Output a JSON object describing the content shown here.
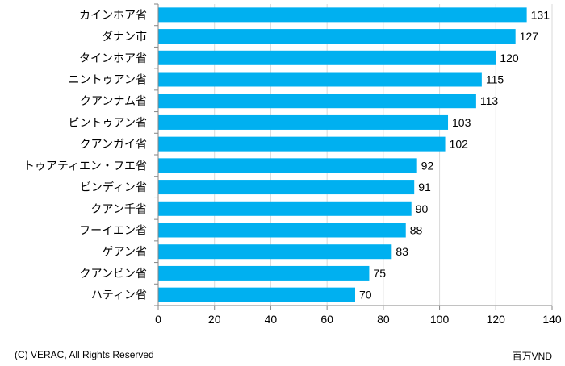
{
  "chart_data": {
    "type": "bar",
    "orientation": "horizontal",
    "categories": [
      "カインホア省",
      "ダナン市",
      "タインホア省",
      "ニントゥアン省",
      "クアンナム省",
      "ビントゥアン省",
      "クアンガイ省",
      "トゥアティエン・フエ省",
      "ビンディン省",
      "クアン千省",
      "フーイエン省",
      "ゲアン省",
      "クアンビン省",
      "ハティン省"
    ],
    "values": [
      131,
      127,
      120,
      115,
      113,
      103,
      102,
      92,
      91,
      90,
      88,
      83,
      75,
      70
    ],
    "xlim": [
      0,
      140
    ],
    "x_ticks": [
      0,
      20,
      40,
      60,
      80,
      100,
      120,
      140
    ],
    "grid": "vertical",
    "data_labels": true,
    "bar_color": "#00B0F0",
    "grid_color": "#D9D9D9",
    "unit_label": "百万VND"
  },
  "footer": {
    "copyright": "(C) VERAC, All Rights Reserved",
    "unit": "百万VND"
  }
}
